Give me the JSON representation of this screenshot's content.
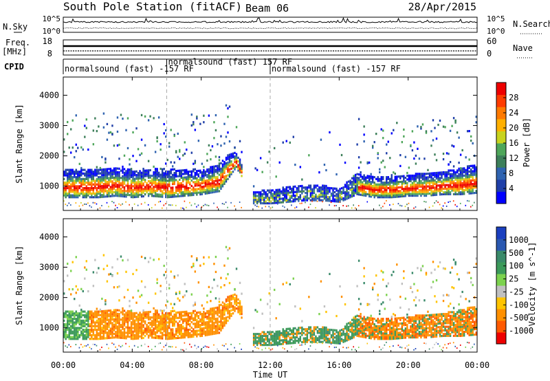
{
  "chart_data": {
    "type": "heatmap",
    "title": "South Pole Station (fitACF)",
    "beam": "Beam 06",
    "date": "28/Apr/2015",
    "xlabel": "Time UT",
    "x_ticks": [
      "00:00",
      "04:00",
      "08:00",
      "12:00",
      "16:00",
      "20:00",
      "00:00"
    ],
    "xlim_hours": [
      0,
      24
    ],
    "header_panels": {
      "noise": {
        "left_label": "N.Sky",
        "left_ticks": [
          "10^5",
          "10^0"
        ],
        "right_label": "N.Search",
        "right_ticks": [
          "10^5",
          "10^0"
        ]
      },
      "freq": {
        "left_label_top": "Freq.",
        "left_label_bottom": "[MHz]",
        "left_ticks": [
          "18",
          "8"
        ],
        "right_label": "Nave",
        "right_ticks": [
          "60",
          "0"
        ]
      },
      "cpid": {
        "label": "CPID",
        "segments": [
          {
            "start_hour": 0.0,
            "text": "normalsound (fast) -157 RF"
          },
          {
            "start_hour": 6.0,
            "text": "normalsound (fast) 157 RF"
          },
          {
            "start_hour": 12.0,
            "text": "normalsound (fast) -157 RF"
          }
        ]
      }
    },
    "panels": [
      {
        "name": "power",
        "ylabel": "Slant Range [km]",
        "y_ticks": [
          1000,
          2000,
          3000,
          4000
        ],
        "ylim": [
          200,
          4600
        ],
        "colorbar": {
          "label": "Power [dB]",
          "tick_labels": [
            "28",
            "24",
            "20",
            "16",
            "12",
            "8",
            "4"
          ],
          "colors": [
            "#0000ff",
            "#1f3fa8",
            "#2f63b0",
            "#3d7f5a",
            "#4ea65a",
            "#c8d31e",
            "#ffb000",
            "#ff7a00",
            "#ff3c00",
            "#ee0000"
          ]
        }
      },
      {
        "name": "velocity",
        "ylabel": "Slant Range [km]",
        "y_ticks": [
          1000,
          2000,
          3000,
          4000
        ],
        "ylim": [
          200,
          4600
        ],
        "colorbar": {
          "label": "Velocity [m s^-1]",
          "tick_labels": [
            "1000",
            "500",
            "100",
            "25",
            "-25",
            "-100",
            "-500",
            "-1000"
          ],
          "colors": [
            "#ee0000",
            "#ff5a00",
            "#ff9000",
            "#ffc400",
            "#c0c0c0",
            "#7cd24e",
            "#3c9a5a",
            "#3a8a6a",
            "#2a58b0",
            "#1a3fbf"
          ]
        }
      }
    ],
    "echo_band": {
      "description_hours": [
        0,
        24
      ],
      "lower_edge_km": [
        [
          0,
          600
        ],
        [
          1,
          600
        ],
        [
          2,
          600
        ],
        [
          3,
          650
        ],
        [
          4,
          600
        ],
        [
          5,
          650
        ],
        [
          6,
          600
        ],
        [
          7,
          650
        ],
        [
          8,
          700
        ],
        [
          9,
          800
        ],
        [
          9.5,
          1200
        ],
        [
          10,
          1600
        ],
        [
          11,
          400
        ],
        [
          12,
          400
        ],
        [
          13,
          450
        ],
        [
          14,
          500
        ],
        [
          15,
          500
        ],
        [
          16,
          450
        ],
        [
          17,
          700
        ],
        [
          18,
          600
        ],
        [
          19,
          600
        ],
        [
          20,
          650
        ],
        [
          21,
          650
        ],
        [
          22,
          700
        ],
        [
          23,
          700
        ],
        [
          24,
          750
        ]
      ],
      "upper_edge_km": [
        [
          0,
          1500
        ],
        [
          1,
          1550
        ],
        [
          2,
          1550
        ],
        [
          3,
          1600
        ],
        [
          4,
          1500
        ],
        [
          5,
          1550
        ],
        [
          6,
          1500
        ],
        [
          7,
          1550
        ],
        [
          8,
          1500
        ],
        [
          9,
          1700
        ],
        [
          9.5,
          2000
        ],
        [
          10,
          2100
        ],
        [
          11,
          800
        ],
        [
          12,
          850
        ],
        [
          13,
          950
        ],
        [
          14,
          1000
        ],
        [
          15,
          1000
        ],
        [
          16,
          900
        ],
        [
          17,
          1400
        ],
        [
          18,
          1300
        ],
        [
          19,
          1300
        ],
        [
          20,
          1350
        ],
        [
          21,
          1400
        ],
        [
          22,
          1450
        ],
        [
          23,
          1550
        ],
        [
          24,
          1700
        ]
      ]
    }
  }
}
